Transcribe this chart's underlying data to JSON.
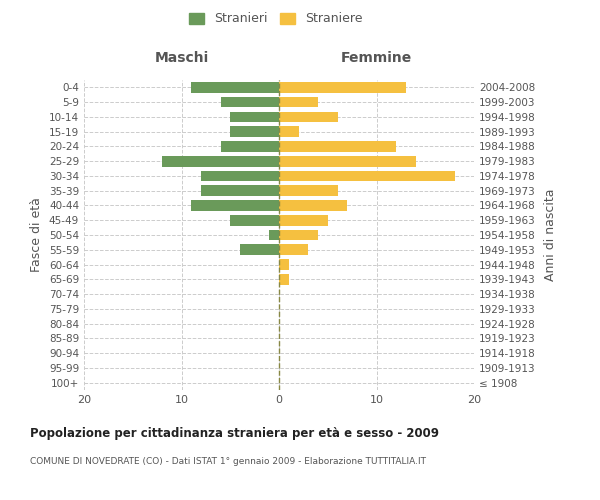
{
  "age_groups": [
    "100+",
    "95-99",
    "90-94",
    "85-89",
    "80-84",
    "75-79",
    "70-74",
    "65-69",
    "60-64",
    "55-59",
    "50-54",
    "45-49",
    "40-44",
    "35-39",
    "30-34",
    "25-29",
    "20-24",
    "15-19",
    "10-14",
    "5-9",
    "0-4"
  ],
  "birth_years": [
    "≤ 1908",
    "1909-1913",
    "1914-1918",
    "1919-1923",
    "1924-1928",
    "1929-1933",
    "1934-1938",
    "1939-1943",
    "1944-1948",
    "1949-1953",
    "1954-1958",
    "1959-1963",
    "1964-1968",
    "1969-1973",
    "1974-1978",
    "1979-1983",
    "1984-1988",
    "1989-1993",
    "1994-1998",
    "1999-2003",
    "2004-2008"
  ],
  "maschi": [
    0,
    0,
    0,
    0,
    0,
    0,
    0,
    0,
    0,
    4,
    1,
    5,
    9,
    8,
    8,
    12,
    6,
    5,
    5,
    6,
    9
  ],
  "femmine": [
    0,
    0,
    0,
    0,
    0,
    0,
    0,
    1,
    1,
    3,
    4,
    5,
    7,
    6,
    18,
    14,
    12,
    2,
    6,
    4,
    13
  ],
  "maschi_color": "#6a9a5a",
  "femmine_color": "#f5c040",
  "bar_height": 0.72,
  "xlim": 20,
  "title": "Popolazione per cittadinanza straniera per età e sesso - 2009",
  "subtitle": "COMUNE DI NOVEDRATE (CO) - Dati ISTAT 1° gennaio 2009 - Elaborazione TUTTITALIA.IT",
  "ylabel_left": "Fasce di età",
  "ylabel_right": "Anni di nascita",
  "label_maschi": "Maschi",
  "label_femmine": "Femmine",
  "legend_stranieri": "Stranieri",
  "legend_straniere": "Straniere",
  "bg_color": "#ffffff",
  "grid_color": "#cccccc",
  "text_color": "#555555"
}
